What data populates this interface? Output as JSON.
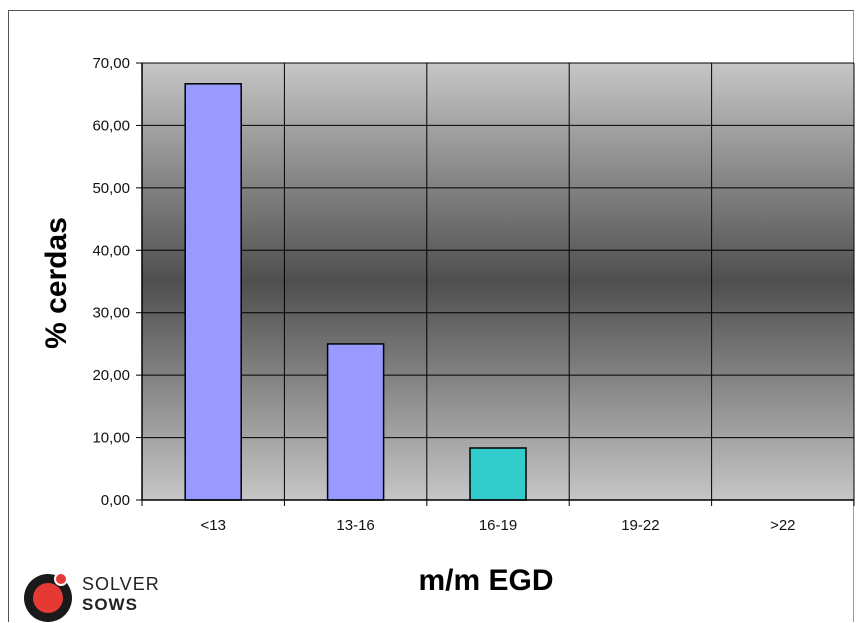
{
  "chart_data": {
    "type": "bar",
    "title": "",
    "xlabel": "m/m EGD",
    "ylabel": "% cerdas",
    "categories": [
      "<13",
      "13-16",
      "16-19",
      "19-22",
      ">22"
    ],
    "values": [
      66.67,
      25.0,
      8.33,
      0,
      0
    ],
    "bar_colors": [
      "#9999ff",
      "#9999ff",
      "#33cccc",
      "#9999ff",
      "#9999ff"
    ],
    "ylim": [
      0,
      70
    ],
    "yticks": [
      "0,00",
      "10,00",
      "20,00",
      "30,00",
      "40,00",
      "50,00",
      "60,00",
      "70,00"
    ],
    "grid": true,
    "legend": "none"
  },
  "logo": {
    "line1": "SOLVER",
    "line2": "SOWS",
    "color": "#e53935"
  }
}
